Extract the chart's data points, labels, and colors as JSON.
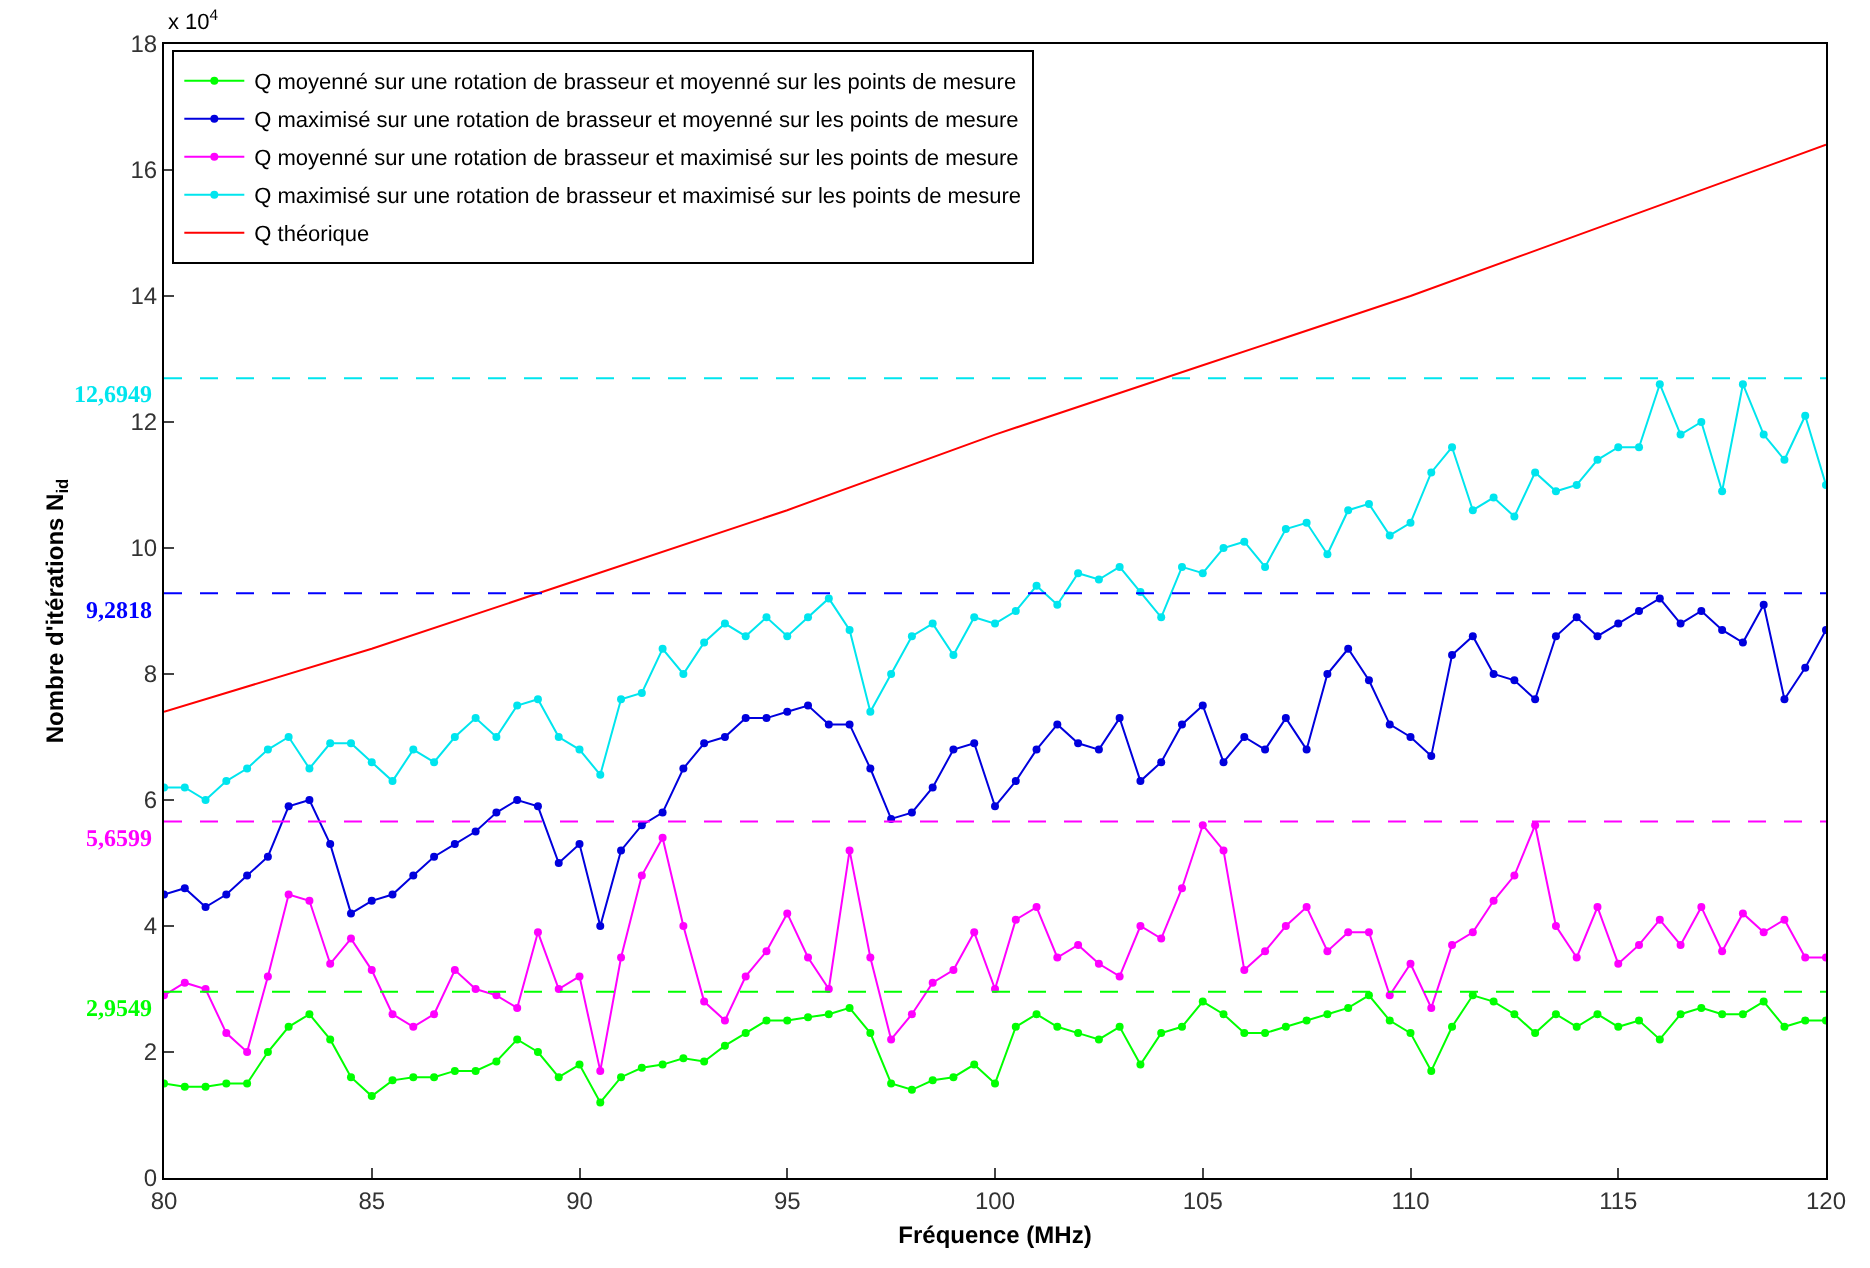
{
  "chart_data": {
    "type": "line",
    "xlabel": "Fréquence (MHz)",
    "ylabel": "Nombre d'itérations N$_{id}$",
    "annotations": [
      "x 10$^{4}$"
    ],
    "x": [
      80,
      80.5,
      81,
      81.5,
      82,
      82.5,
      83,
      83.5,
      84,
      84.5,
      85,
      85.5,
      86,
      86.5,
      87,
      87.5,
      88,
      88.5,
      89,
      89.5,
      90,
      90.5,
      91,
      91.5,
      92,
      92.5,
      93,
      93.5,
      94,
      94.5,
      95,
      95.5,
      96,
      96.5,
      97,
      97.5,
      98,
      98.5,
      99,
      99.5,
      100,
      100.5,
      101,
      101.5,
      102,
      102.5,
      103,
      103.5,
      104,
      104.5,
      105,
      105.5,
      106,
      106.5,
      107,
      107.5,
      108,
      108.5,
      109,
      109.5,
      110,
      110.5,
      111,
      111.5,
      112,
      112.5,
      113,
      113.5,
      114,
      114.5,
      115,
      115.5,
      116,
      116.5,
      117,
      117.5,
      118,
      118.5,
      119,
      119.5,
      120
    ],
    "marker": "circle",
    "line_style": "solid",
    "legend": "top left",
    "xlim": [
      80,
      120
    ],
    "xticks": [
      80,
      85,
      90,
      95,
      100,
      105,
      110,
      115,
      120
    ],
    "ylim": [
      0,
      18
    ],
    "yticks": [
      0,
      2,
      4,
      6,
      8,
      10,
      12,
      14,
      16,
      18
    ],
    "series": [
      {
        "name": "Q moyenné sur une rotation de brasseur et moyenné sur les points de mesure",
        "color": "#00ff00",
        "values": [
          1.5,
          1.45,
          1.45,
          1.5,
          1.5,
          2.0,
          2.4,
          2.6,
          2.2,
          1.6,
          1.3,
          1.55,
          1.6,
          1.6,
          1.7,
          1.7,
          1.85,
          2.2,
          2.0,
          1.6,
          1.8,
          1.2,
          1.6,
          1.75,
          1.8,
          1.9,
          1.85,
          2.1,
          2.3,
          2.5,
          2.5,
          2.55,
          2.6,
          2.7,
          2.3,
          1.5,
          1.4,
          1.55,
          1.6,
          1.8,
          1.5,
          2.4,
          2.6,
          2.4,
          2.3,
          2.2,
          2.4,
          1.8,
          2.3,
          2.4,
          2.8,
          2.6,
          2.3,
          2.3,
          2.4,
          2.5,
          2.6,
          2.7,
          2.9,
          2.5,
          2.3,
          1.7,
          2.4,
          2.9,
          2.8,
          2.6,
          2.3,
          2.6,
          2.4,
          2.6,
          2.4,
          2.5,
          2.2,
          2.6,
          2.7,
          2.6,
          2.6,
          2.8,
          2.4,
          2.5,
          2.5
        ]
      },
      {
        "name": "Q maximisé sur une rotation de brasseur et moyenné sur les points de mesure",
        "color": "#0000dd",
        "values": [
          4.5,
          4.6,
          4.3,
          4.5,
          4.8,
          5.1,
          5.9,
          6.0,
          5.3,
          4.2,
          4.4,
          4.5,
          4.8,
          5.1,
          5.3,
          5.5,
          5.8,
          6.0,
          5.9,
          5.0,
          5.3,
          4.0,
          5.2,
          5.6,
          5.8,
          6.5,
          6.9,
          7.0,
          7.3,
          7.3,
          7.4,
          7.5,
          7.2,
          7.2,
          6.5,
          5.7,
          5.8,
          6.2,
          6.8,
          6.9,
          5.9,
          6.3,
          6.8,
          7.2,
          6.9,
          6.8,
          7.3,
          6.3,
          6.6,
          7.2,
          7.5,
          6.6,
          7.0,
          6.8,
          7.3,
          6.8,
          8.0,
          8.4,
          7.9,
          7.2,
          7.0,
          6.7,
          8.3,
          8.6,
          8.0,
          7.9,
          7.6,
          8.6,
          8.9,
          8.6,
          8.8,
          9.0,
          9.2,
          8.8,
          9.0,
          8.7,
          8.5,
          9.1,
          7.6,
          8.1,
          8.7
        ]
      },
      {
        "name": "Q moyenné sur une rotation de brasseur et maximisé sur les points de mesure",
        "color": "#ff00ff",
        "values": [
          2.9,
          3.1,
          3.0,
          2.3,
          2.0,
          3.2,
          4.5,
          4.4,
          3.4,
          3.8,
          3.3,
          2.6,
          2.4,
          2.6,
          3.3,
          3.0,
          2.9,
          2.7,
          3.9,
          3.0,
          3.2,
          1.7,
          3.5,
          4.8,
          5.4,
          4.0,
          2.8,
          2.5,
          3.2,
          3.6,
          4.2,
          3.5,
          3.0,
          5.2,
          3.5,
          2.2,
          2.6,
          3.1,
          3.3,
          3.9,
          3.0,
          4.1,
          4.3,
          3.5,
          3.7,
          3.4,
          3.2,
          4.0,
          3.8,
          4.6,
          5.6,
          5.2,
          3.3,
          3.6,
          4.0,
          4.3,
          3.6,
          3.9,
          3.9,
          2.9,
          3.4,
          2.7,
          3.7,
          3.9,
          4.4,
          4.8,
          5.6,
          4.0,
          3.5,
          4.3,
          3.4,
          3.7,
          4.1,
          3.7,
          4.3,
          3.6,
          4.2,
          3.9,
          4.1,
          3.5,
          3.5
        ]
      },
      {
        "name": "Q maximisé sur une rotation de brasseur et maximisé sur les points de mesure",
        "color": "#00e5ee",
        "values": [
          6.2,
          6.2,
          6.0,
          6.3,
          6.5,
          6.8,
          7.0,
          6.5,
          6.9,
          6.9,
          6.6,
          6.3,
          6.8,
          6.6,
          7.0,
          7.3,
          7.0,
          7.5,
          7.6,
          7.0,
          6.8,
          6.4,
          7.6,
          7.7,
          8.4,
          8.0,
          8.5,
          8.8,
          8.6,
          8.9,
          8.6,
          8.9,
          9.2,
          8.7,
          7.4,
          8.0,
          8.6,
          8.8,
          8.3,
          8.9,
          8.8,
          9.0,
          9.4,
          9.1,
          9.6,
          9.5,
          9.7,
          9.3,
          8.9,
          9.7,
          9.6,
          10.0,
          10.1,
          9.7,
          10.3,
          10.4,
          9.9,
          10.6,
          10.7,
          10.2,
          10.4,
          11.2,
          11.6,
          10.6,
          10.8,
          10.5,
          11.2,
          10.9,
          11.0,
          11.4,
          11.6,
          11.6,
          12.6,
          11.8,
          12.0,
          10.9,
          12.6,
          11.8,
          11.4,
          12.1,
          11.0
        ]
      },
      {
        "name": "Q théorique",
        "color": "#ff0000",
        "marker": "none",
        "x": [
          80,
          85,
          90,
          95,
          100,
          105,
          110,
          115,
          120
        ],
        "values": [
          7.4,
          8.4,
          9.5,
          10.6,
          11.8,
          12.9,
          14.0,
          15.2,
          16.4
        ]
      }
    ],
    "ref_lines": [
      {
        "axis": "y",
        "value": 12.6949,
        "label": "12,6949",
        "color": "#00e5ee",
        "line_style": "dashed"
      },
      {
        "axis": "y",
        "value": 9.2818,
        "label": "9,2818",
        "color": "#0000ff",
        "line_style": "dashed"
      },
      {
        "axis": "y",
        "value": 5.6599,
        "label": "5,6599",
        "color": "#ff00ff",
        "line_style": "dashed"
      },
      {
        "axis": "y",
        "value": 2.9549,
        "label": "2,9549",
        "color": "#00ff00",
        "line_style": "dashed"
      }
    ]
  }
}
